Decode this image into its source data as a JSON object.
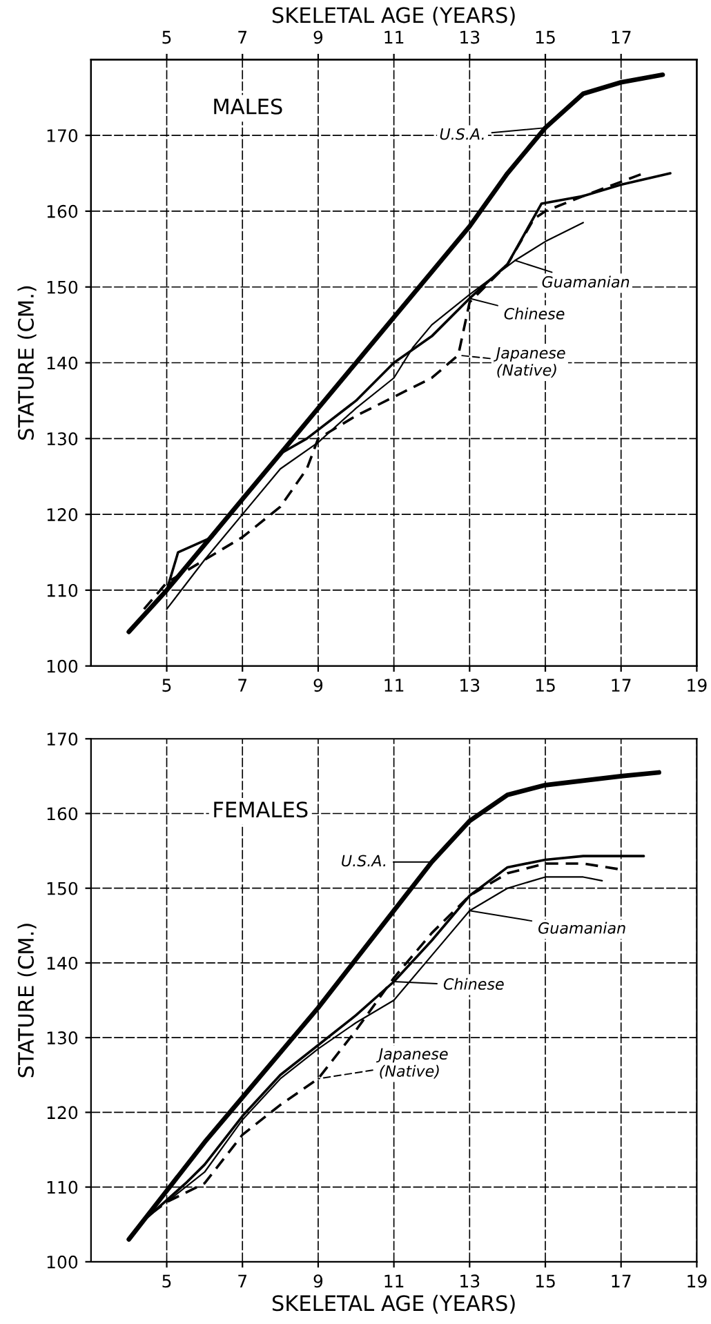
{
  "chart_data": [
    {
      "type": "line",
      "title": "MALES",
      "ylabel": "STATURE (CM.)",
      "x2label": "SKELETAL AGE (YEARS)",
      "xlim": [
        3,
        19
      ],
      "xticks": [
        5,
        7,
        9,
        11,
        13,
        15,
        17,
        19
      ],
      "x2lim": [
        3,
        19
      ],
      "x2ticks": [
        5,
        7,
        9,
        11,
        13,
        15,
        17
      ],
      "ylim": [
        100,
        180
      ],
      "yticks": [
        100,
        110,
        120,
        130,
        140,
        150,
        160,
        170
      ],
      "grid": true,
      "marker": "none",
      "series": [
        {
          "name": "U.S.A.",
          "color": "#000000",
          "line_style": "solid",
          "x": [
            4,
            5,
            6,
            7,
            8,
            9,
            10,
            11,
            12,
            13,
            14,
            15,
            16,
            17,
            18.1
          ],
          "values": [
            104.5,
            110,
            116,
            122,
            128,
            134,
            140,
            146,
            152,
            158,
            165,
            171,
            175.5,
            177,
            178
          ]
        },
        {
          "name": "Guamanian",
          "color": "#000000",
          "line_style": "solid",
          "x": [
            5,
            6,
            7,
            8,
            9,
            10,
            11,
            11.5,
            12,
            13,
            14.2,
            15,
            16
          ],
          "values": [
            107.5,
            114,
            120,
            126,
            129.5,
            134,
            138,
            142,
            145,
            149,
            153.5,
            156,
            158.5
          ]
        },
        {
          "name": "Chinese",
          "color": "#000000",
          "line_style": "solid",
          "x": [
            5,
            5.3,
            6.2,
            7,
            8,
            8.7,
            10,
            11,
            12,
            13,
            14,
            14.9,
            16,
            17,
            18.3
          ],
          "values": [
            110,
            115,
            117,
            122,
            128,
            130,
            135,
            140,
            143.5,
            148.5,
            153,
            161,
            162,
            163.5,
            165
          ]
        },
        {
          "name": "Japanese\n(Native)",
          "color": "#000000",
          "line_style": "dashed",
          "x": [
            4.4,
            5,
            6,
            7,
            8,
            8.7,
            9,
            10,
            11,
            12,
            12.7,
            13,
            14,
            14.7,
            15,
            16,
            17.6
          ],
          "values": [
            107.5,
            111,
            114,
            117,
            121,
            126,
            130,
            133,
            135.5,
            138,
            141,
            148,
            153,
            159,
            160,
            162,
            165
          ]
        }
      ]
    },
    {
      "type": "line",
      "title": "FEMALES",
      "ylabel": "STATURE (CM.)",
      "xlabel": "SKELETAL AGE (YEARS)",
      "xlim": [
        3,
        19
      ],
      "xticks": [
        5,
        7,
        9,
        11,
        13,
        15,
        17,
        19
      ],
      "ylim": [
        100,
        170
      ],
      "yticks": [
        100,
        110,
        120,
        130,
        140,
        150,
        160,
        170
      ],
      "grid": true,
      "marker": "none",
      "series": [
        {
          "name": "U.S.A.",
          "color": "#000000",
          "line_style": "solid",
          "x": [
            4,
            5,
            6,
            7,
            8,
            9,
            10,
            11,
            12,
            13,
            14,
            15,
            16,
            17,
            18
          ],
          "values": [
            103,
            109.5,
            116,
            122,
            128,
            134,
            140.5,
            147,
            153.5,
            159,
            162.5,
            163.8,
            164.4,
            165,
            165.5
          ]
        },
        {
          "name": "Guamanian",
          "color": "#000000",
          "line_style": "solid",
          "x": [
            5,
            6,
            7,
            8,
            9,
            10,
            11,
            12,
            13,
            14,
            15,
            16,
            16.5
          ],
          "values": [
            108,
            112,
            119,
            124.5,
            128.5,
            132,
            135,
            141,
            147,
            150,
            151.5,
            151.5,
            151
          ]
        },
        {
          "name": "Chinese",
          "color": "#000000",
          "line_style": "solid",
          "x": [
            4.5,
            5.5,
            6,
            7,
            8,
            9,
            10,
            11,
            12,
            13,
            14,
            15,
            16,
            17.6
          ],
          "values": [
            106,
            110.5,
            113,
            119.5,
            125,
            129,
            133,
            137.5,
            143,
            149,
            152.8,
            153.8,
            154.3,
            154.3
          ]
        },
        {
          "name": "Japanese\n(Native)",
          "color": "#000000",
          "line_style": "dashed",
          "x": [
            4.6,
            5,
            6,
            7,
            8,
            9,
            10,
            11,
            12,
            13,
            14,
            15,
            16,
            17
          ],
          "values": [
            106.5,
            108,
            110.5,
            117,
            121,
            124.5,
            131,
            138,
            144,
            149,
            152,
            153.3,
            153.3,
            152.5
          ]
        }
      ]
    }
  ]
}
